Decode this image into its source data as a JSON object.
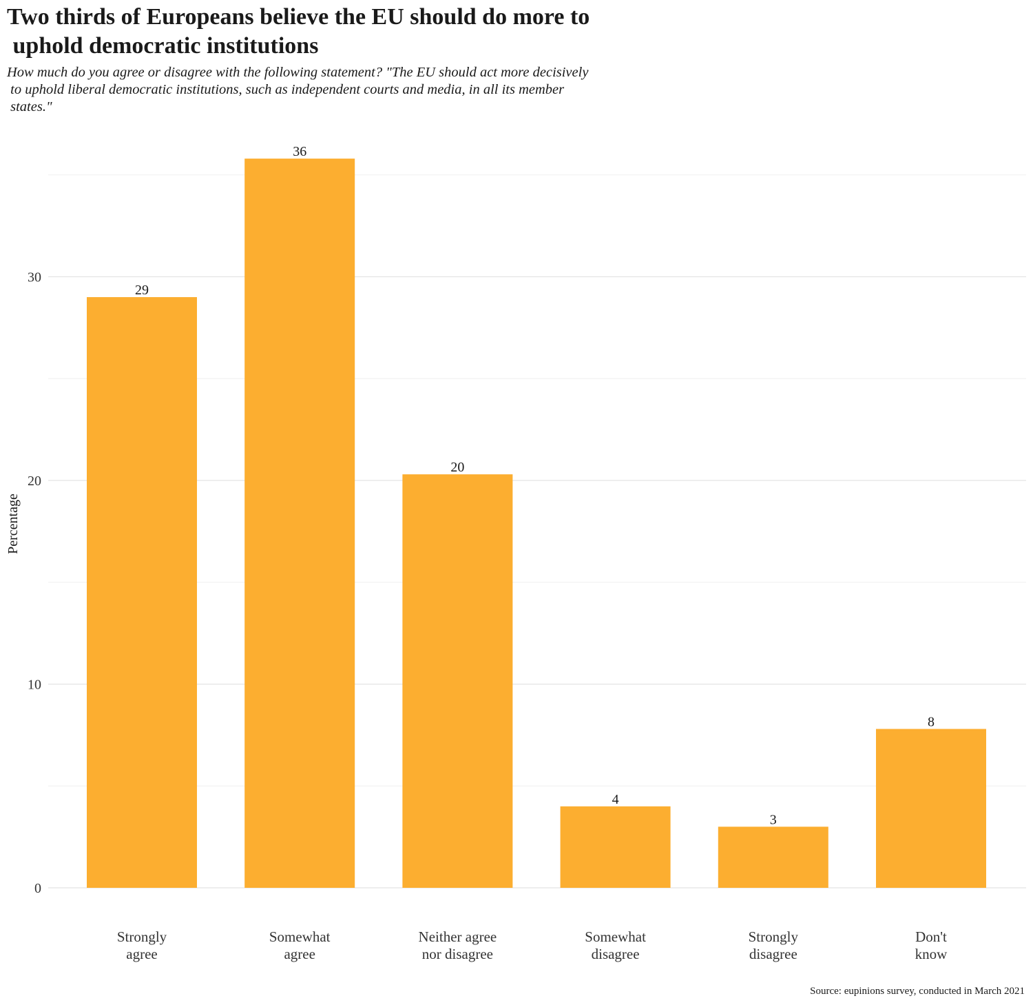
{
  "chart_data": {
    "type": "bar",
    "title": "Two thirds of Europeans believe the EU should do more to\n uphold democratic institutions",
    "subtitle": "How much do you agree or disagree with the following statement? \"The EU should act more decisively\n to uphold liberal democratic institutions, such as independent courts and media, in all its member\n states.\"",
    "ylabel": "Percentage",
    "xlabel": "",
    "ylim": [
      0,
      36
    ],
    "yticks": [
      "0",
      "10",
      "20",
      "30"
    ],
    "grid": true,
    "categories": [
      [
        "Strongly",
        "agree"
      ],
      [
        "Somewhat",
        "agree"
      ],
      [
        "Neither agree",
        "nor disagree"
      ],
      [
        "Somewhat",
        "disagree"
      ],
      [
        "Strongly",
        "disagree"
      ],
      [
        "Don't",
        "know"
      ]
    ],
    "values": [
      29,
      35.8,
      20.3,
      4,
      3,
      7.8
    ],
    "data_labels": [
      "29",
      "36",
      "20",
      "4",
      "3",
      "8"
    ],
    "bar_color": "#fcae30",
    "source": "Source: eupinions survey, conducted in March 2021"
  }
}
